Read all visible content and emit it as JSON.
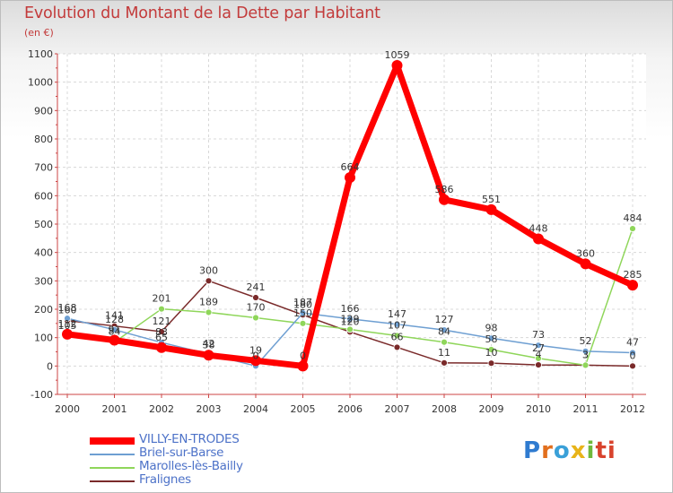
{
  "chart_data": {
    "type": "line",
    "title": "Evolution du Montant de la Dette par Habitant",
    "unit_label": "(en €)",
    "x": [
      "2000",
      "2001",
      "2002",
      "2003",
      "2004",
      "2005",
      "2006",
      "2007",
      "2008",
      "2009",
      "2010",
      "2011",
      "2012"
    ],
    "ylim": [
      -100,
      1100
    ],
    "yticks": [
      "-100",
      "0",
      "100",
      "200",
      "300",
      "400",
      "500",
      "600",
      "700",
      "800",
      "900",
      "1000",
      "1100"
    ],
    "grid": true,
    "series": [
      {
        "name": "VILLY-EN-TRODES",
        "color": "#ff0000",
        "values": [
          112,
          91,
          65,
          38,
          19,
          0,
          664,
          1059,
          586,
          551,
          448,
          360,
          285
        ],
        "labels": [
          "112",
          "91",
          "65",
          "38",
          "19",
          "0",
          "664",
          "1059",
          "586",
          "551",
          "448",
          "360",
          "285"
        ]
      },
      {
        "name": "Briel-sur-Barse",
        "color": "#6e9fd2",
        "values": [
          168,
          128,
          83,
          42,
          0,
          187,
          166,
          147,
          127,
          98,
          73,
          52,
          47
        ],
        "labels": [
          "168",
          "128",
          "83",
          "42",
          "0",
          "187",
          "166",
          "147",
          "127",
          "98",
          "73",
          "52",
          "47"
        ]
      },
      {
        "name": "Marolles-lès-Bailly",
        "color": "#8fd65a",
        "values": [
          105,
          84,
          201,
          189,
          170,
          150,
          129,
          107,
          84,
          58,
          27,
          3,
          484
        ],
        "labels": [
          "105",
          "84",
          "201",
          "189",
          "170",
          "150",
          "129",
          "107",
          "84",
          "58",
          "27",
          "3",
          "484"
        ]
      },
      {
        "name": "Fralignes",
        "color": "#7a2a2a",
        "values": [
          160,
          141,
          121,
          300,
          241,
          180,
          120,
          66,
          11,
          10,
          4,
          3,
          0
        ],
        "labels": [
          "160",
          "141",
          "121",
          "300",
          "241",
          "180",
          "120",
          "66",
          "11",
          "10",
          "4",
          "3",
          "0"
        ]
      }
    ]
  },
  "brand": {
    "logo_letters": [
      "P",
      "r",
      "o",
      "x",
      "i",
      "ti"
    ]
  }
}
